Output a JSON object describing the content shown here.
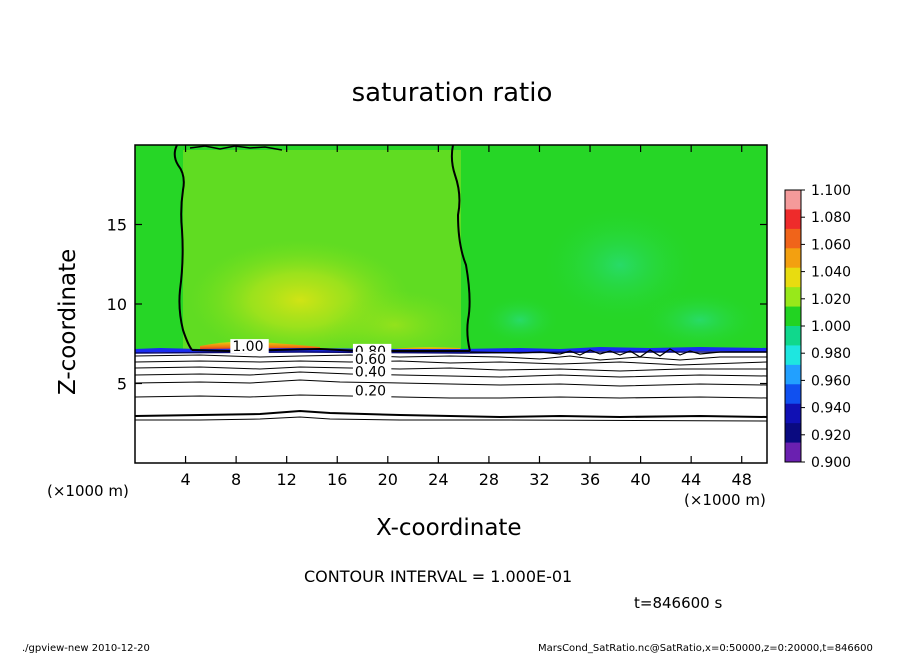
{
  "title": "saturation ratio",
  "xlabel": "X-coordinate",
  "ylabel": "Z-coordinate",
  "x_unit_left": "(×1000 m)",
  "x_unit_right": "(×1000 m)",
  "contour_interval": "CONTOUR INTERVAL = 1.000E-01",
  "time_label": "t=846600 s",
  "footer_left": "./gpview-new  2010-12-20",
  "footer_right": "MarsCond_SatRatio.nc@SatRatio,x=0:50000,z=0:20000,t=846600",
  "chart_data": {
    "type": "heatmap",
    "title": "saturation ratio",
    "xlabel": "X-coordinate",
    "ylabel": "Z-coordinate",
    "xlim": [
      0,
      50
    ],
    "ylim": [
      0,
      20
    ],
    "x_ticks": [
      4,
      8,
      12,
      16,
      20,
      24,
      28,
      32,
      36,
      40,
      44,
      48
    ],
    "y_ticks": [
      5,
      10,
      15
    ],
    "colorbar": {
      "labels": [
        "1.100",
        "1.080",
        "1.060",
        "1.040",
        "1.020",
        "1.000",
        "0.980",
        "0.960",
        "0.940",
        "0.920",
        "0.900"
      ],
      "colors": [
        "#f49a9a",
        "#ee2b2b",
        "#f0641a",
        "#f3a010",
        "#e8dc10",
        "#98e81a",
        "#22d322",
        "#10d88c",
        "#1ee6e0",
        "#22a0ff",
        "#1050f0",
        "#1010b4",
        "#0a0a80",
        "#6a20b0"
      ],
      "min": 0.9,
      "max": 1.1
    },
    "contour_labels": [
      {
        "text": "1.00",
        "x": 7.7,
        "z": 7.1
      },
      {
        "text": "0.80",
        "x": 17.4,
        "z": 6.8
      },
      {
        "text": "0.60",
        "x": 17.4,
        "z": 6.3
      },
      {
        "text": "0.40",
        "x": 17.4,
        "z": 5.5
      },
      {
        "text": "0.20",
        "x": 17.4,
        "z": 4.3
      }
    ],
    "contour_interval": 0.1,
    "time": "t=846600 s"
  }
}
